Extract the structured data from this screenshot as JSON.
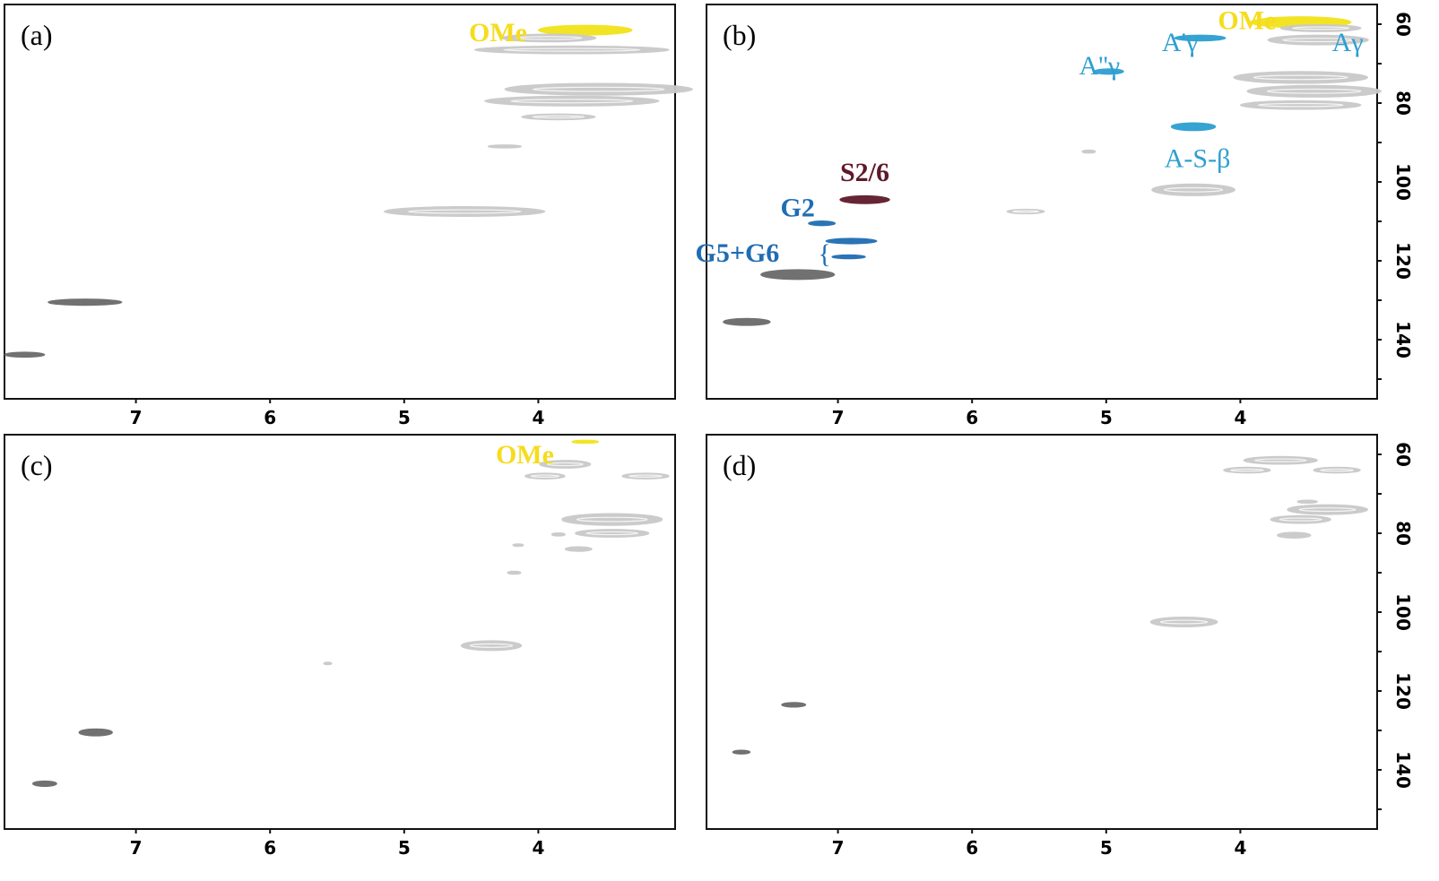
{
  "chart_data": [
    {
      "panel": "(a)",
      "type": "scatter",
      "x_ticks": [
        "7",
        "6",
        "5",
        "4"
      ],
      "xlim": [
        7.98,
        2.98
      ],
      "ylim": [
        55,
        155
      ],
      "show_x_ticks": true,
      "show_y_ticks": false,
      "annotations": [
        {
          "text": "OMe",
          "x": 4.3,
          "y": 62,
          "color": "#f5dc1e",
          "bold": true
        }
      ],
      "signals": [
        {
          "x": 3.65,
          "y": 61.5,
          "w": 0.7,
          "h": 2.5,
          "color": "#f2e31a"
        },
        {
          "x": 3.92,
          "y": 63.5,
          "w": 0.7,
          "h": 2.0,
          "color": "#c9c9c9"
        },
        {
          "x": 3.75,
          "y": 66.5,
          "w": 1.45,
          "h": 2.0,
          "color": "#c9c9c9"
        },
        {
          "x": 3.55,
          "y": 76.5,
          "w": 1.4,
          "h": 3.0,
          "color": "#c9c9c9"
        },
        {
          "x": 3.75,
          "y": 79.5,
          "w": 1.3,
          "h": 2.5,
          "color": "#c9c9c9"
        },
        {
          "x": 3.85,
          "y": 83.5,
          "w": 0.55,
          "h": 1.5,
          "color": "#c9c9c9"
        },
        {
          "x": 4.25,
          "y": 91.0,
          "w": 0.25,
          "h": 0.8,
          "color": "#c9c9c9"
        },
        {
          "x": 4.55,
          "y": 107.5,
          "w": 1.2,
          "h": 2.5,
          "color": "#c9c9c9"
        },
        {
          "x": 7.38,
          "y": 130.5,
          "w": 0.55,
          "h": 1.6,
          "color": "#6a6a6a"
        },
        {
          "x": 7.83,
          "y": 143.8,
          "w": 0.3,
          "h": 1.3,
          "color": "#6a6a6a"
        }
      ]
    },
    {
      "panel": "(b)",
      "type": "scatter",
      "x_ticks": [
        "7",
        "6",
        "5",
        "4"
      ],
      "y_ticks": [
        "60",
        "80",
        "100",
        "120",
        "140"
      ],
      "xlim": [
        7.98,
        2.98
      ],
      "ylim": [
        55,
        155
      ],
      "show_x_ticks": true,
      "show_y_ticks": true,
      "annotations": [
        {
          "text": "OMe",
          "x": 3.95,
          "y": 59,
          "color": "#f5dc1e",
          "bold": true
        },
        {
          "text": "A'γ",
          "x": 4.45,
          "y": 64.5,
          "color": "#2d9fd0",
          "bold": false
        },
        {
          "text": "Aγ",
          "x": 3.2,
          "y": 64.5,
          "color": "#2d9fd0",
          "bold": false
        },
        {
          "text": "A''γ",
          "x": 5.05,
          "y": 70.5,
          "color": "#2d9fd0",
          "bold": false
        },
        {
          "text": "A-S-β",
          "x": 4.32,
          "y": 94.0,
          "color": "#2d9fd0",
          "bold": false
        },
        {
          "text": "S2/6",
          "x": 6.8,
          "y": 97.5,
          "color": "#5e1a2b",
          "bold": true
        },
        {
          "text": "G2",
          "x": 7.3,
          "y": 106.5,
          "color": "#1f6db3",
          "bold": true
        },
        {
          "text": "G5+G6",
          "x": 7.75,
          "y": 118.0,
          "color": "#1f6db3",
          "bold": true
        }
      ],
      "signals": [
        {
          "x": 3.55,
          "y": 59.5,
          "w": 0.75,
          "h": 2.8,
          "color": "#f2e31a"
        },
        {
          "x": 4.3,
          "y": 63.5,
          "w": 0.38,
          "h": 1.5,
          "color": "#2d9fd0"
        },
        {
          "x": 3.42,
          "y": 64.0,
          "w": 0.75,
          "h": 2.5,
          "color": "#c9c9c9"
        },
        {
          "x": 3.4,
          "y": 61.0,
          "w": 0.6,
          "h": 1.8,
          "color": "#c9c9c9"
        },
        {
          "x": 4.98,
          "y": 72.0,
          "w": 0.22,
          "h": 1.4,
          "color": "#2d9fd0"
        },
        {
          "x": 3.55,
          "y": 73.5,
          "w": 1.0,
          "h": 3.0,
          "color": "#c9c9c9"
        },
        {
          "x": 3.45,
          "y": 77.0,
          "w": 1.0,
          "h": 3.0,
          "color": "#c9c9c9"
        },
        {
          "x": 3.55,
          "y": 80.5,
          "w": 0.9,
          "h": 2.2,
          "color": "#c9c9c9"
        },
        {
          "x": 4.35,
          "y": 86.0,
          "w": 0.33,
          "h": 2.0,
          "color": "#2d9fd0"
        },
        {
          "x": 5.13,
          "y": 92.3,
          "w": 0.1,
          "h": 0.8,
          "color": "#c9c9c9"
        },
        {
          "x": 4.35,
          "y": 102.0,
          "w": 0.62,
          "h": 3.0,
          "color": "#c9c9c9"
        },
        {
          "x": 5.6,
          "y": 107.5,
          "w": 0.28,
          "h": 1.2,
          "color": "#c9c9c9"
        },
        {
          "x": 6.8,
          "y": 104.5,
          "w": 0.37,
          "h": 2.0,
          "color": "#5e1a2b"
        },
        {
          "x": 7.12,
          "y": 110.5,
          "w": 0.2,
          "h": 1.2,
          "color": "#1f6db3"
        },
        {
          "x": 6.9,
          "y": 115.0,
          "w": 0.38,
          "h": 1.4,
          "color": "#1f6db3"
        },
        {
          "x": 6.92,
          "y": 119.0,
          "w": 0.25,
          "h": 1.0,
          "color": "#1f6db3"
        },
        {
          "x": 7.3,
          "y": 123.5,
          "w": 0.55,
          "h": 2.5,
          "color": "#6a6a6a"
        },
        {
          "x": 7.68,
          "y": 135.5,
          "w": 0.35,
          "h": 1.8,
          "color": "#6a6a6a"
        }
      ]
    },
    {
      "panel": "(c)",
      "type": "scatter",
      "x_ticks": [
        "7",
        "6",
        "5",
        "4"
      ],
      "xlim": [
        7.98,
        2.98
      ],
      "ylim": [
        55,
        155
      ],
      "show_x_ticks": true,
      "show_y_ticks": false,
      "annotations": [
        {
          "text": "OMe",
          "x": 4.1,
          "y": 60,
          "color": "#f5dc1e",
          "bold": true
        }
      ],
      "signals": [
        {
          "x": 3.65,
          "y": 56.8,
          "w": 0.2,
          "h": 0.8,
          "color": "#f2e31a"
        },
        {
          "x": 3.8,
          "y": 62.5,
          "w": 0.38,
          "h": 2.0,
          "color": "#c9c9c9"
        },
        {
          "x": 3.95,
          "y": 65.5,
          "w": 0.3,
          "h": 1.5,
          "color": "#c9c9c9"
        },
        {
          "x": 3.2,
          "y": 65.5,
          "w": 0.35,
          "h": 1.5,
          "color": "#c9c9c9"
        },
        {
          "x": 3.45,
          "y": 76.5,
          "w": 0.75,
          "h": 3.0,
          "color": "#c9c9c9"
        },
        {
          "x": 3.45,
          "y": 80.0,
          "w": 0.55,
          "h": 2.0,
          "color": "#c9c9c9"
        },
        {
          "x": 3.7,
          "y": 84.0,
          "w": 0.2,
          "h": 1.2,
          "color": "#c9c9c9"
        },
        {
          "x": 4.15,
          "y": 83.0,
          "w": 0.08,
          "h": 0.6,
          "color": "#c9c9c9"
        },
        {
          "x": 3.85,
          "y": 80.3,
          "w": 0.1,
          "h": 0.8,
          "color": "#c9c9c9"
        },
        {
          "x": 4.18,
          "y": 90.0,
          "w": 0.1,
          "h": 0.8,
          "color": "#c9c9c9"
        },
        {
          "x": 4.35,
          "y": 108.5,
          "w": 0.45,
          "h": 2.5,
          "color": "#c9c9c9"
        },
        {
          "x": 5.57,
          "y": 113.0,
          "w": 0.06,
          "h": 0.5,
          "color": "#c9c9c9"
        },
        {
          "x": 7.3,
          "y": 130.5,
          "w": 0.25,
          "h": 1.8,
          "color": "#6a6a6a"
        },
        {
          "x": 7.68,
          "y": 143.5,
          "w": 0.18,
          "h": 1.4,
          "color": "#6a6a6a"
        }
      ]
    },
    {
      "panel": "(d)",
      "type": "scatter",
      "x_ticks": [
        "7",
        "6",
        "5",
        "4"
      ],
      "y_ticks": [
        "60",
        "80",
        "100",
        "120",
        "140"
      ],
      "xlim": [
        7.98,
        2.98
      ],
      "ylim": [
        55,
        155
      ],
      "show_x_ticks": true,
      "show_y_ticks": true,
      "annotations": [],
      "signals": [
        {
          "x": 3.7,
          "y": 61.5,
          "w": 0.55,
          "h": 2.0,
          "color": "#c9c9c9"
        },
        {
          "x": 3.95,
          "y": 64.0,
          "w": 0.35,
          "h": 1.5,
          "color": "#c9c9c9"
        },
        {
          "x": 3.28,
          "y": 64.0,
          "w": 0.35,
          "h": 1.5,
          "color": "#c9c9c9"
        },
        {
          "x": 3.5,
          "y": 72.0,
          "w": 0.15,
          "h": 0.8,
          "color": "#c9c9c9"
        },
        {
          "x": 3.35,
          "y": 74.0,
          "w": 0.6,
          "h": 2.5,
          "color": "#c9c9c9"
        },
        {
          "x": 3.55,
          "y": 76.5,
          "w": 0.45,
          "h": 2.0,
          "color": "#c9c9c9"
        },
        {
          "x": 3.6,
          "y": 80.5,
          "w": 0.25,
          "h": 1.5,
          "color": "#c9c9c9"
        },
        {
          "x": 4.42,
          "y": 102.5,
          "w": 0.5,
          "h": 2.5,
          "color": "#c9c9c9"
        },
        {
          "x": 7.33,
          "y": 123.5,
          "w": 0.18,
          "h": 1.2,
          "color": "#6a6a6a"
        },
        {
          "x": 7.72,
          "y": 135.5,
          "w": 0.13,
          "h": 1.0,
          "color": "#6a6a6a"
        }
      ]
    }
  ],
  "brace": "{"
}
